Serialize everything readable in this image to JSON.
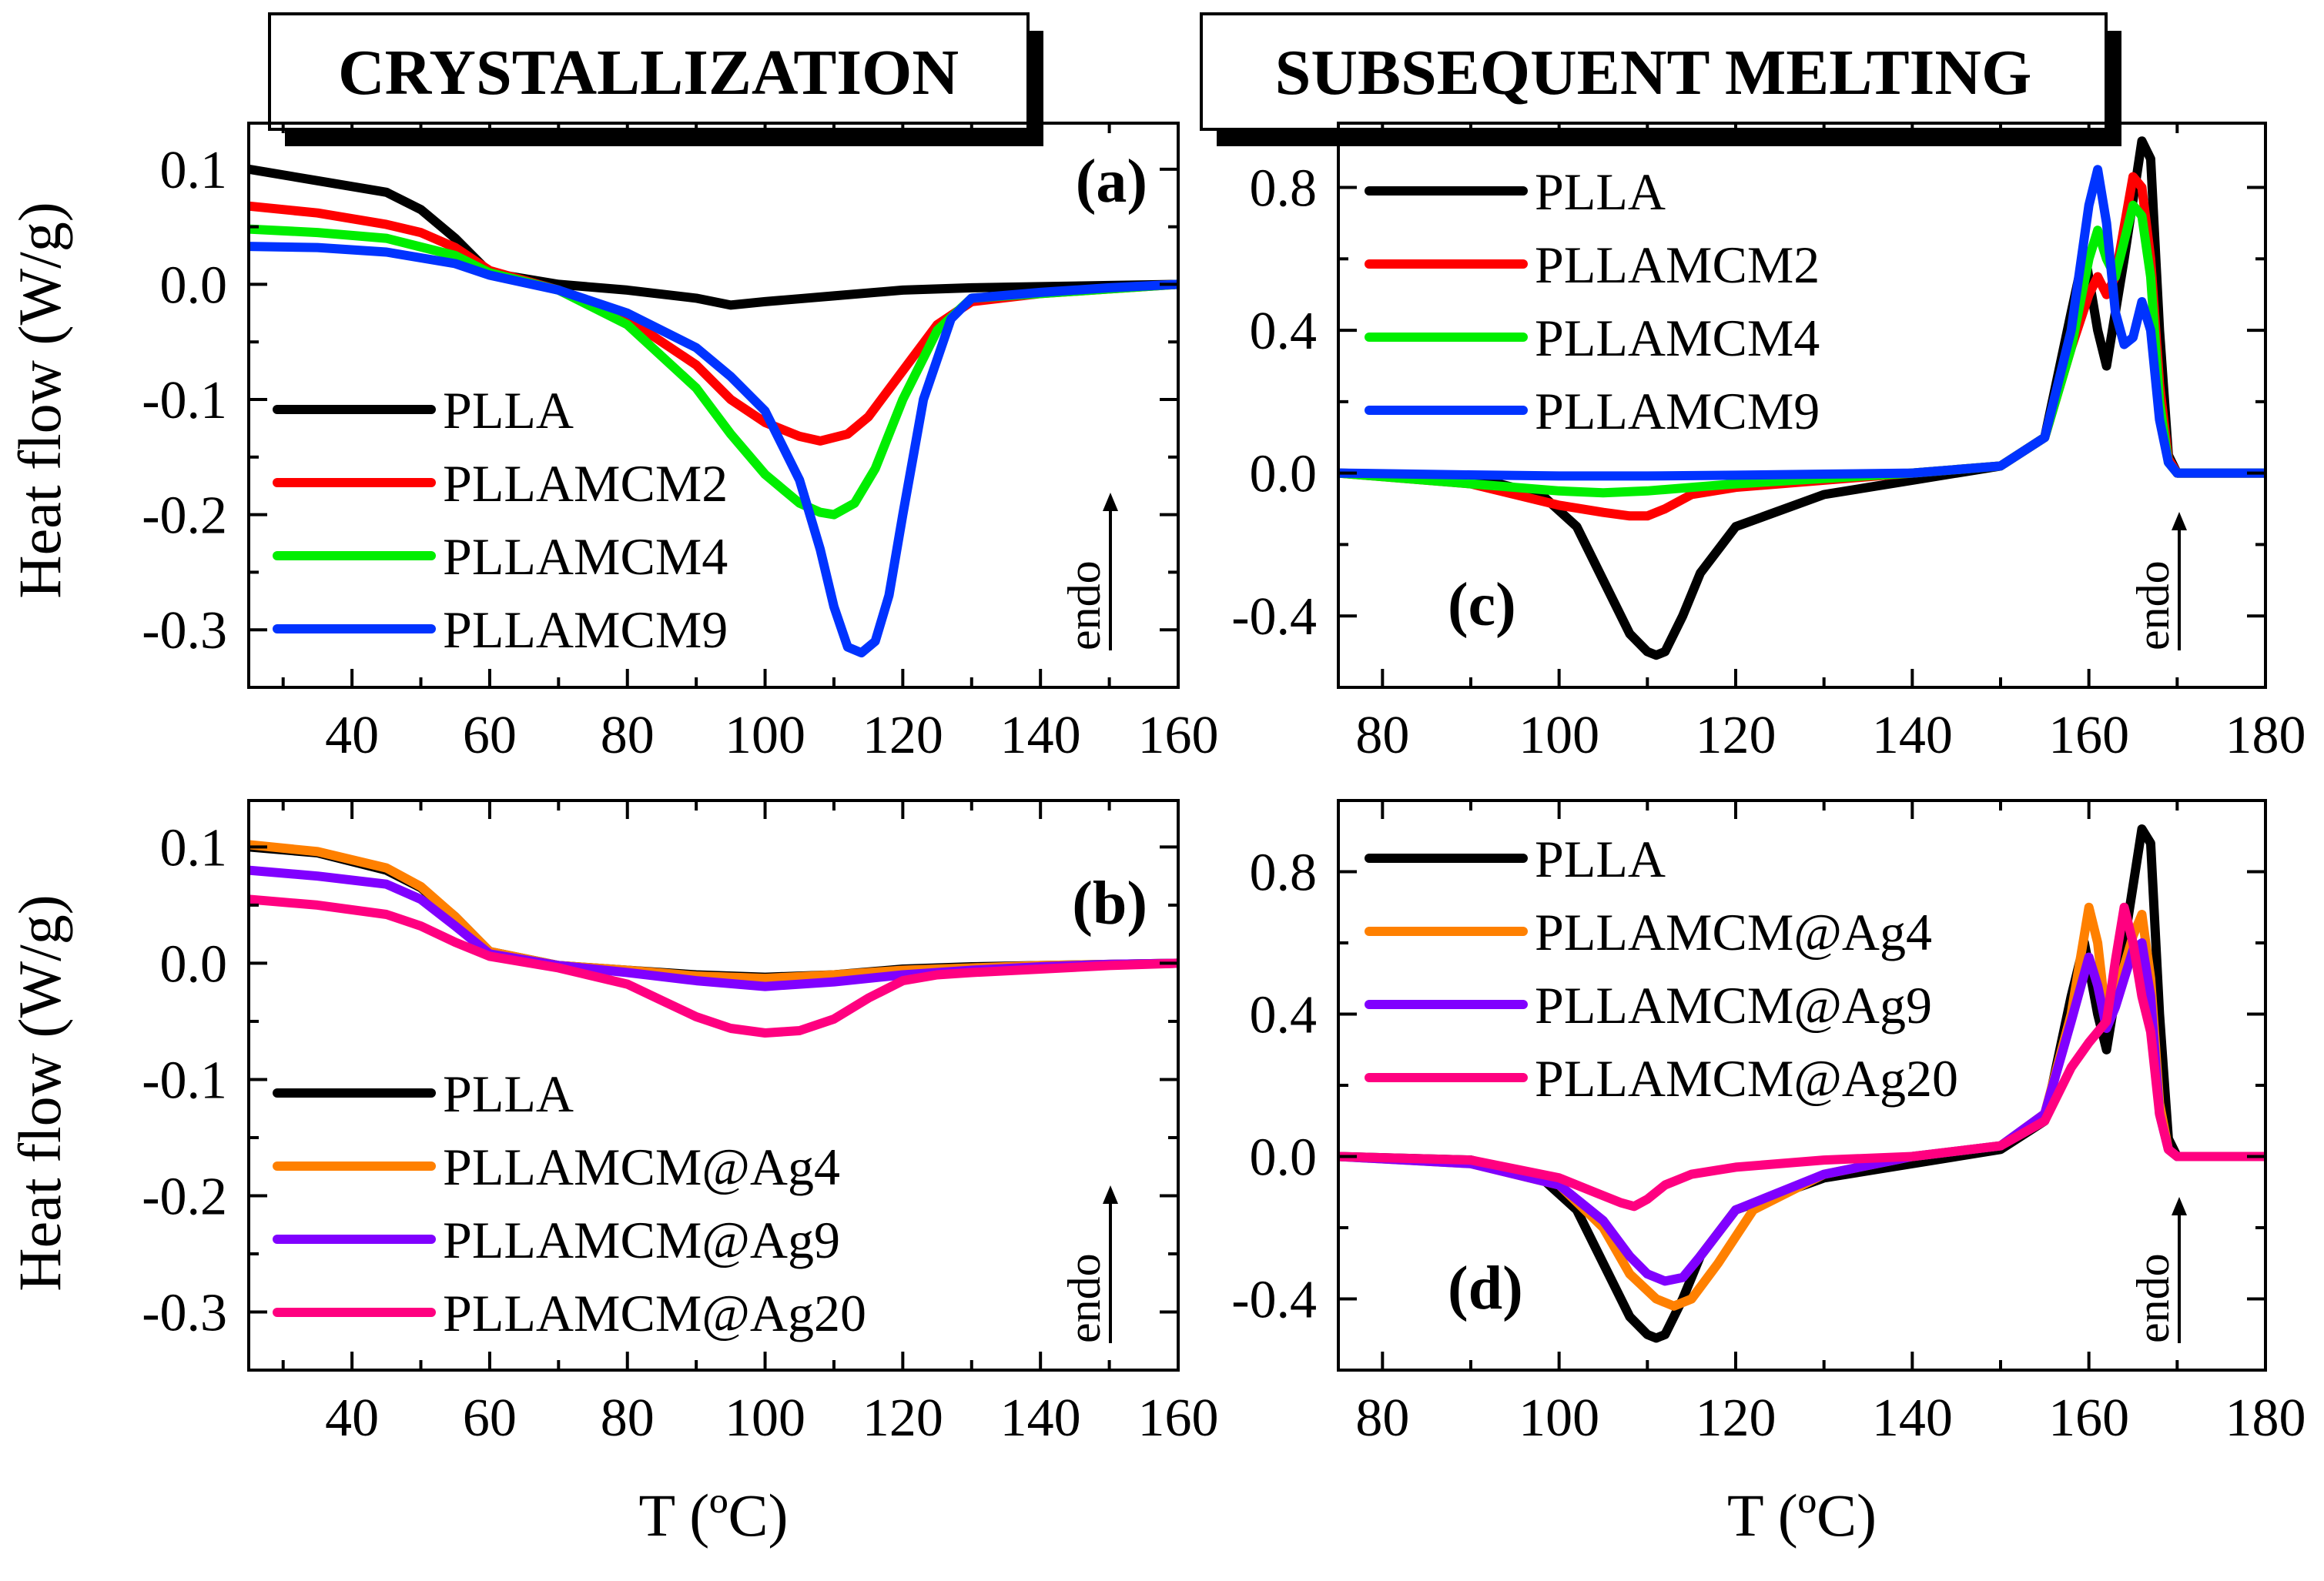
{
  "section_titles": {
    "left": "CRYSTALLIZATION",
    "right": "SUBSEQUENT MELTING"
  },
  "colors": {
    "PLLA": "#000000",
    "PLLAMCM2": "#ff0000",
    "PLLAMCM4": "#00ee00",
    "PLLAMCM9": "#0033ff",
    "PLLAMCM@Ag4": "#ff8000",
    "PLLAMCM@Ag9": "#8000ff",
    "PLLAMCM@Ag20": "#ff0080"
  },
  "shared": {
    "ylabel": "Heat flow (W/g)",
    "xlabel": "T (ºC)",
    "endo_label": "endo"
  },
  "chart_data": [
    {
      "id": "a",
      "tag": "(a)",
      "type": "line",
      "xlim": [
        25,
        160
      ],
      "ylim": [
        -0.35,
        0.14
      ],
      "xticks": [
        40,
        60,
        80,
        100,
        120,
        140,
        160
      ],
      "yticks": [
        0.1,
        0.0,
        -0.1,
        -0.2,
        -0.3
      ],
      "ytick_labels": [
        "0.1",
        "0.0",
        "-0.1",
        "-0.2",
        "-0.3"
      ],
      "show_xlabel": false,
      "series": [
        {
          "name": "PLLA",
          "x": [
            25,
            35,
            45,
            50,
            55,
            60,
            70,
            80,
            90,
            95,
            100,
            110,
            120,
            130,
            140,
            150,
            160
          ],
          "y": [
            0.1,
            0.09,
            0.08,
            0.065,
            0.04,
            0.01,
            0.0,
            -0.005,
            -0.012,
            -0.018,
            -0.015,
            -0.01,
            -0.005,
            -0.003,
            -0.002,
            -0.001,
            0.0
          ]
        },
        {
          "name": "PLLAMCM2",
          "x": [
            25,
            35,
            45,
            50,
            55,
            60,
            70,
            80,
            90,
            95,
            100,
            105,
            108,
            112,
            115,
            120,
            125,
            130,
            140,
            150,
            160
          ],
          "y": [
            0.068,
            0.062,
            0.052,
            0.045,
            0.032,
            0.012,
            -0.005,
            -0.03,
            -0.07,
            -0.1,
            -0.12,
            -0.132,
            -0.136,
            -0.13,
            -0.115,
            -0.075,
            -0.035,
            -0.015,
            -0.008,
            -0.004,
            0.0
          ]
        },
        {
          "name": "PLLAMCM4",
          "x": [
            25,
            35,
            45,
            55,
            60,
            70,
            80,
            90,
            95,
            100,
            105,
            108,
            110,
            113,
            116,
            120,
            125,
            130,
            140,
            150,
            160
          ],
          "y": [
            0.048,
            0.045,
            0.04,
            0.025,
            0.01,
            -0.005,
            -0.035,
            -0.09,
            -0.13,
            -0.165,
            -0.19,
            -0.198,
            -0.2,
            -0.19,
            -0.16,
            -0.1,
            -0.04,
            -0.012,
            -0.008,
            -0.004,
            0.0
          ]
        },
        {
          "name": "PLLAMCM9",
          "x": [
            25,
            35,
            45,
            55,
            60,
            70,
            80,
            90,
            95,
            100,
            105,
            108,
            110,
            112,
            114,
            116,
            118,
            120,
            123,
            127,
            130,
            140,
            150,
            160
          ],
          "y": [
            0.033,
            0.032,
            0.028,
            0.018,
            0.008,
            -0.005,
            -0.025,
            -0.055,
            -0.08,
            -0.11,
            -0.17,
            -0.23,
            -0.28,
            -0.315,
            -0.32,
            -0.31,
            -0.27,
            -0.2,
            -0.1,
            -0.03,
            -0.012,
            -0.007,
            -0.003,
            0.0
          ]
        }
      ]
    },
    {
      "id": "b",
      "tag": "(b)",
      "type": "line",
      "xlim": [
        25,
        160
      ],
      "ylim": [
        -0.35,
        0.14
      ],
      "xticks": [
        40,
        60,
        80,
        100,
        120,
        140,
        160
      ],
      "yticks": [
        0.1,
        0.0,
        -0.1,
        -0.2,
        -0.3
      ],
      "ytick_labels": [
        "0.1",
        "0.0",
        "-0.1",
        "-0.2",
        "-0.3"
      ],
      "show_xlabel": true,
      "series": [
        {
          "name": "PLLA",
          "x": [
            25,
            35,
            45,
            50,
            55,
            60,
            70,
            80,
            90,
            100,
            110,
            120,
            130,
            140,
            150,
            160
          ],
          "y": [
            0.1,
            0.095,
            0.08,
            0.065,
            0.04,
            0.01,
            -0.002,
            -0.006,
            -0.01,
            -0.012,
            -0.01,
            -0.005,
            -0.003,
            -0.002,
            -0.001,
            0.0
          ]
        },
        {
          "name": "PLLAMCM@Ag4",
          "x": [
            25,
            35,
            45,
            50,
            55,
            60,
            70,
            80,
            90,
            100,
            110,
            120,
            130,
            140,
            150,
            160
          ],
          "y": [
            0.102,
            0.096,
            0.082,
            0.066,
            0.04,
            0.01,
            -0.002,
            -0.006,
            -0.011,
            -0.013,
            -0.01,
            -0.006,
            -0.004,
            -0.002,
            -0.001,
            0.0
          ]
        },
        {
          "name": "PLLAMCM@Ag9",
          "x": [
            25,
            35,
            45,
            50,
            55,
            60,
            70,
            80,
            90,
            100,
            110,
            120,
            130,
            140,
            150,
            160
          ],
          "y": [
            0.08,
            0.075,
            0.068,
            0.055,
            0.032,
            0.008,
            -0.002,
            -0.008,
            -0.015,
            -0.02,
            -0.016,
            -0.01,
            -0.006,
            -0.003,
            -0.001,
            0.0
          ]
        },
        {
          "name": "PLLAMCM@Ag20",
          "x": [
            25,
            35,
            45,
            50,
            55,
            60,
            70,
            80,
            85,
            90,
            95,
            100,
            105,
            110,
            115,
            120,
            125,
            130,
            140,
            150,
            160
          ],
          "y": [
            0.055,
            0.05,
            0.042,
            0.032,
            0.018,
            0.006,
            -0.004,
            -0.018,
            -0.032,
            -0.046,
            -0.056,
            -0.06,
            -0.058,
            -0.048,
            -0.03,
            -0.015,
            -0.01,
            -0.008,
            -0.005,
            -0.002,
            0.0
          ]
        }
      ]
    },
    {
      "id": "c",
      "tag": "(c)",
      "type": "line",
      "xlim": [
        75,
        180
      ],
      "ylim": [
        -0.6,
        0.98
      ],
      "xticks": [
        80,
        100,
        120,
        140,
        160,
        180
      ],
      "yticks": [
        0.8,
        0.4,
        0.0,
        -0.4
      ],
      "ytick_labels": [
        "0.8",
        "0.4",
        "0.0",
        "-0.4"
      ],
      "show_xlabel": false,
      "series": [
        {
          "name": "PLLA",
          "x": [
            75,
            90,
            98,
            102,
            105,
            108,
            110,
            111,
            112,
            114,
            116,
            120,
            130,
            140,
            150,
            155,
            158,
            159.5,
            161,
            162,
            164,
            166,
            167,
            168,
            169,
            170,
            175,
            180
          ],
          "y": [
            0.0,
            -0.01,
            -0.06,
            -0.15,
            -0.3,
            -0.45,
            -0.5,
            -0.51,
            -0.5,
            -0.4,
            -0.28,
            -0.15,
            -0.06,
            -0.02,
            0.02,
            0.1,
            0.45,
            0.62,
            0.4,
            0.3,
            0.6,
            0.93,
            0.88,
            0.4,
            0.05,
            0.0,
            0.0,
            0.0
          ]
        },
        {
          "name": "PLLAMCM2",
          "x": [
            75,
            90,
            100,
            105,
            108,
            110,
            112,
            115,
            120,
            130,
            140,
            150,
            155,
            158,
            160,
            161,
            162,
            163,
            165,
            166,
            167,
            168,
            169,
            170,
            175,
            180
          ],
          "y": [
            0.0,
            -0.03,
            -0.09,
            -0.11,
            -0.12,
            -0.12,
            -0.1,
            -0.06,
            -0.04,
            -0.02,
            0.0,
            0.02,
            0.1,
            0.35,
            0.5,
            0.55,
            0.5,
            0.55,
            0.83,
            0.8,
            0.6,
            0.25,
            0.04,
            0.0,
            0.0,
            0.0
          ]
        },
        {
          "name": "PLLAMCM4",
          "x": [
            75,
            90,
            100,
            105,
            110,
            115,
            120,
            130,
            140,
            150,
            155,
            158,
            160,
            161,
            162,
            163,
            165,
            166,
            167,
            168,
            169,
            170,
            175,
            180
          ],
          "y": [
            0.0,
            -0.03,
            -0.05,
            -0.055,
            -0.05,
            -0.04,
            -0.03,
            -0.015,
            0.0,
            0.02,
            0.1,
            0.35,
            0.6,
            0.68,
            0.6,
            0.55,
            0.75,
            0.72,
            0.55,
            0.2,
            0.03,
            0.0,
            0.0,
            0.0
          ]
        },
        {
          "name": "PLLAMCM9",
          "x": [
            75,
            90,
            100,
            110,
            120,
            130,
            140,
            150,
            155,
            158,
            160,
            161,
            162,
            163,
            164,
            165,
            166,
            167,
            168,
            169,
            170,
            175,
            180
          ],
          "y": [
            0.0,
            -0.005,
            -0.008,
            -0.008,
            -0.006,
            -0.003,
            0.0,
            0.02,
            0.1,
            0.4,
            0.75,
            0.85,
            0.7,
            0.45,
            0.36,
            0.38,
            0.48,
            0.4,
            0.15,
            0.03,
            0.0,
            0.0,
            0.0
          ]
        }
      ]
    },
    {
      "id": "d",
      "tag": "(d)",
      "type": "line",
      "xlim": [
        75,
        180
      ],
      "ylim": [
        -0.6,
        1.0
      ],
      "xticks": [
        80,
        100,
        120,
        140,
        160,
        180
      ],
      "yticks": [
        0.8,
        0.4,
        0.0,
        -0.4
      ],
      "ytick_labels": [
        "0.8",
        "0.4",
        "0.0",
        "-0.4"
      ],
      "show_xlabel": true,
      "series": [
        {
          "name": "PLLA",
          "x": [
            75,
            90,
            98,
            102,
            105,
            108,
            110,
            111,
            112,
            114,
            116,
            120,
            130,
            140,
            150,
            155,
            158,
            159.5,
            161,
            162,
            164,
            166,
            167,
            168,
            169,
            170,
            175,
            180
          ],
          "y": [
            0.0,
            -0.01,
            -0.06,
            -0.15,
            -0.3,
            -0.45,
            -0.5,
            -0.51,
            -0.5,
            -0.4,
            -0.28,
            -0.15,
            -0.06,
            -0.02,
            0.02,
            0.1,
            0.45,
            0.6,
            0.4,
            0.3,
            0.6,
            0.92,
            0.88,
            0.4,
            0.05,
            0.0,
            0.0,
            0.0
          ]
        },
        {
          "name": "PLLAMCM@Ag4",
          "x": [
            75,
            90,
            100,
            105,
            108,
            111,
            113,
            115,
            118,
            122,
            130,
            140,
            150,
            155,
            158,
            160,
            161,
            162,
            163,
            165,
            166,
            167,
            168,
            169,
            170,
            175,
            180
          ],
          "y": [
            0.0,
            -0.02,
            -0.08,
            -0.2,
            -0.33,
            -0.4,
            -0.42,
            -0.4,
            -0.3,
            -0.15,
            -0.05,
            0.0,
            0.03,
            0.12,
            0.4,
            0.7,
            0.6,
            0.38,
            0.45,
            0.62,
            0.68,
            0.5,
            0.15,
            0.02,
            0.0,
            0.0,
            0.0
          ]
        },
        {
          "name": "PLLAMCM@Ag9",
          "x": [
            75,
            90,
            100,
            105,
            108,
            110,
            112,
            114,
            116,
            120,
            130,
            140,
            150,
            155,
            158,
            160,
            161,
            162,
            163,
            165,
            166,
            167,
            168,
            169,
            170,
            175,
            180
          ],
          "y": [
            0.0,
            -0.02,
            -0.08,
            -0.18,
            -0.28,
            -0.33,
            -0.35,
            -0.34,
            -0.28,
            -0.15,
            -0.05,
            0.0,
            0.03,
            0.12,
            0.38,
            0.56,
            0.48,
            0.36,
            0.42,
            0.58,
            0.6,
            0.45,
            0.12,
            0.02,
            0.0,
            0.0,
            0.0
          ]
        },
        {
          "name": "PLLAMCM@Ag20",
          "x": [
            75,
            90,
            100,
            104,
            107,
            108.5,
            110,
            112,
            115,
            120,
            130,
            140,
            150,
            155,
            158,
            160,
            162,
            163,
            164,
            165,
            166,
            167,
            168,
            169,
            170,
            175,
            180
          ],
          "y": [
            0.0,
            -0.01,
            -0.06,
            -0.1,
            -0.13,
            -0.14,
            -0.12,
            -0.08,
            -0.05,
            -0.03,
            -0.01,
            0.0,
            0.03,
            0.1,
            0.25,
            0.32,
            0.38,
            0.55,
            0.7,
            0.6,
            0.45,
            0.35,
            0.12,
            0.02,
            0.0,
            0.0,
            0.0
          ]
        }
      ]
    }
  ]
}
